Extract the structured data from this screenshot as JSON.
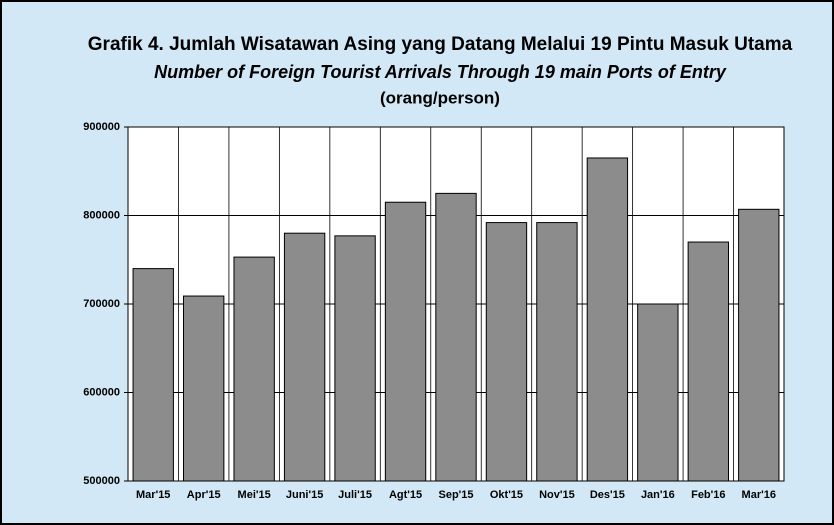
{
  "chart_data": {
    "type": "bar",
    "title": "Grafik  4. Jumlah Wisatawan Asing yang Datang Melalui 19 Pintu Masuk Utama",
    "subtitle": "Number of Foreign Tourist Arrivals Through 19 main Ports of Entry",
    "unit_note": "(orang/person)",
    "categories": [
      "Mar'15",
      "Apr'15",
      "Mei'15",
      "Juni'15",
      "Juli'15",
      "Agt'15",
      "Sep'15",
      "Okt'15",
      "Nov'15",
      "Des'15",
      "Jan'16",
      "Feb'16",
      "Mar'16"
    ],
    "values": [
      740000,
      709000,
      753000,
      780000,
      777000,
      815000,
      825000,
      792000,
      792000,
      865000,
      700000,
      770000,
      807000
    ],
    "color": "#8c8c8c",
    "ylim": [
      500000,
      900000
    ],
    "yticks": [
      500000,
      600000,
      700000,
      800000,
      900000
    ],
    "grid": true
  }
}
